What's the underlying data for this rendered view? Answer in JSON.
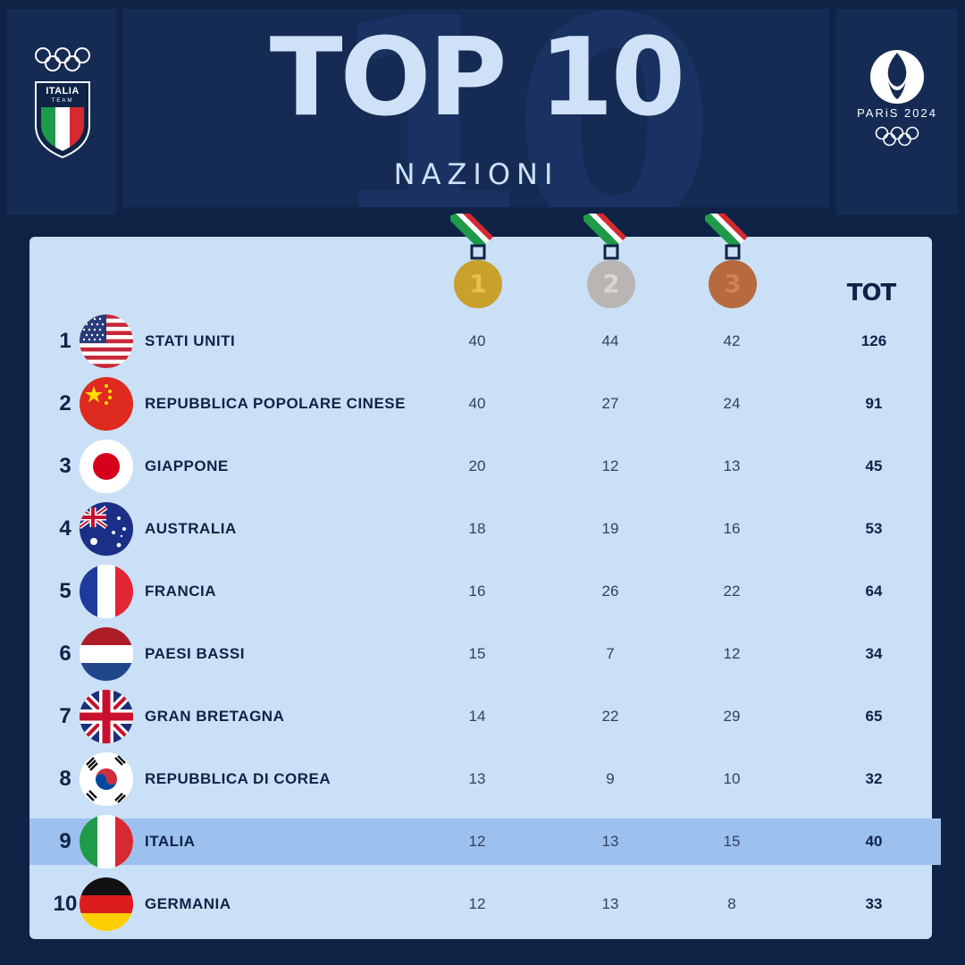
{
  "header": {
    "title": "TOP 10",
    "subtitle": "NAZIONI",
    "ghost_number": "10"
  },
  "logos": {
    "left": {
      "name": "italia-team-logo",
      "line1": "ITALIA",
      "line2": "TEAM"
    },
    "right": {
      "name": "paris-2024-logo",
      "text": "PARiS 2024"
    }
  },
  "table": {
    "medal_labels": [
      "1",
      "2",
      "3"
    ],
    "tot_label": "TOT",
    "rows": [
      {
        "rank": "1",
        "country": "STATI UNITI",
        "gold": "40",
        "silver": "44",
        "bronze": "42",
        "total": "126",
        "flag": "usa-flag-icon"
      },
      {
        "rank": "2",
        "country": "REPUBBLICA POPOLARE CINESE",
        "gold": "40",
        "silver": "27",
        "bronze": "24",
        "total": "91",
        "flag": "china-flag-icon"
      },
      {
        "rank": "3",
        "country": "GIAPPONE",
        "gold": "20",
        "silver": "12",
        "bronze": "13",
        "total": "45",
        "flag": "japan-flag-icon"
      },
      {
        "rank": "4",
        "country": "AUSTRALIA",
        "gold": "18",
        "silver": "19",
        "bronze": "16",
        "total": "53",
        "flag": "australia-flag-icon"
      },
      {
        "rank": "5",
        "country": "FRANCIA",
        "gold": "16",
        "silver": "26",
        "bronze": "22",
        "total": "64",
        "flag": "france-flag-icon"
      },
      {
        "rank": "6",
        "country": "PAESI BASSI",
        "gold": "15",
        "silver": "7",
        "bronze": "12",
        "total": "34",
        "flag": "netherlands-flag-icon"
      },
      {
        "rank": "7",
        "country": "GRAN BRETAGNA",
        "gold": "14",
        "silver": "22",
        "bronze": "29",
        "total": "65",
        "flag": "uk-flag-icon"
      },
      {
        "rank": "8",
        "country": "REPUBBLICA DI COREA",
        "gold": "13",
        "silver": "9",
        "bronze": "10",
        "total": "32",
        "flag": "korea-flag-icon"
      },
      {
        "rank": "9",
        "country": "ITALIA",
        "gold": "12",
        "silver": "13",
        "bronze": "15",
        "total": "40",
        "flag": "italy-flag-icon",
        "highlighted": true
      },
      {
        "rank": "10",
        "country": "GERMANIA",
        "gold": "12",
        "silver": "13",
        "bronze": "8",
        "total": "33",
        "flag": "germany-flag-icon"
      }
    ]
  },
  "colors": {
    "background": "#0f2346",
    "panel": "#152b54",
    "table_bg": "#c9e0f7",
    "highlight_row": "#9dc1ee",
    "gold": "#c8a02c",
    "silver": "#b9b5b2",
    "bronze": "#b66a3d"
  }
}
